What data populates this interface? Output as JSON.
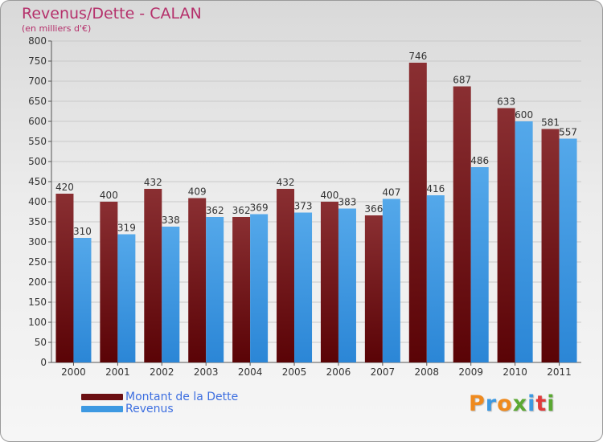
{
  "title": "Revenus/Dette - CALAN",
  "subtitle": "(en milliers d'€)",
  "legend": [
    {
      "label": "Montant de la Dette",
      "color": "#6b0f12"
    },
    {
      "label": "Revenus",
      "color": "#3d99e2"
    }
  ],
  "logo": {
    "text": "Proxiti",
    "colors": [
      "#ef8a1e",
      "#3d99e2",
      "#ef8a1e",
      "#5aa832",
      "#3d99e2",
      "#e03b3b",
      "#5aa832"
    ]
  },
  "chart_data": {
    "type": "bar",
    "categories": [
      "2000",
      "2001",
      "2002",
      "2003",
      "2004",
      "2005",
      "2006",
      "2007",
      "2008",
      "2009",
      "2010",
      "2011"
    ],
    "series": [
      {
        "name": "Montant de la Dette",
        "values": [
          420,
          400,
          432,
          409,
          362,
          432,
          400,
          366,
          746,
          687,
          633,
          581
        ]
      },
      {
        "name": "Revenus",
        "values": [
          310,
          319,
          338,
          362,
          369,
          373,
          383,
          407,
          416,
          486,
          600,
          557
        ]
      }
    ],
    "yticks": [
      0,
      50,
      100,
      150,
      200,
      250,
      300,
      350,
      400,
      450,
      500,
      550,
      600,
      650,
      700,
      750,
      800
    ],
    "ylim": [
      0,
      800
    ],
    "grid": true
  }
}
